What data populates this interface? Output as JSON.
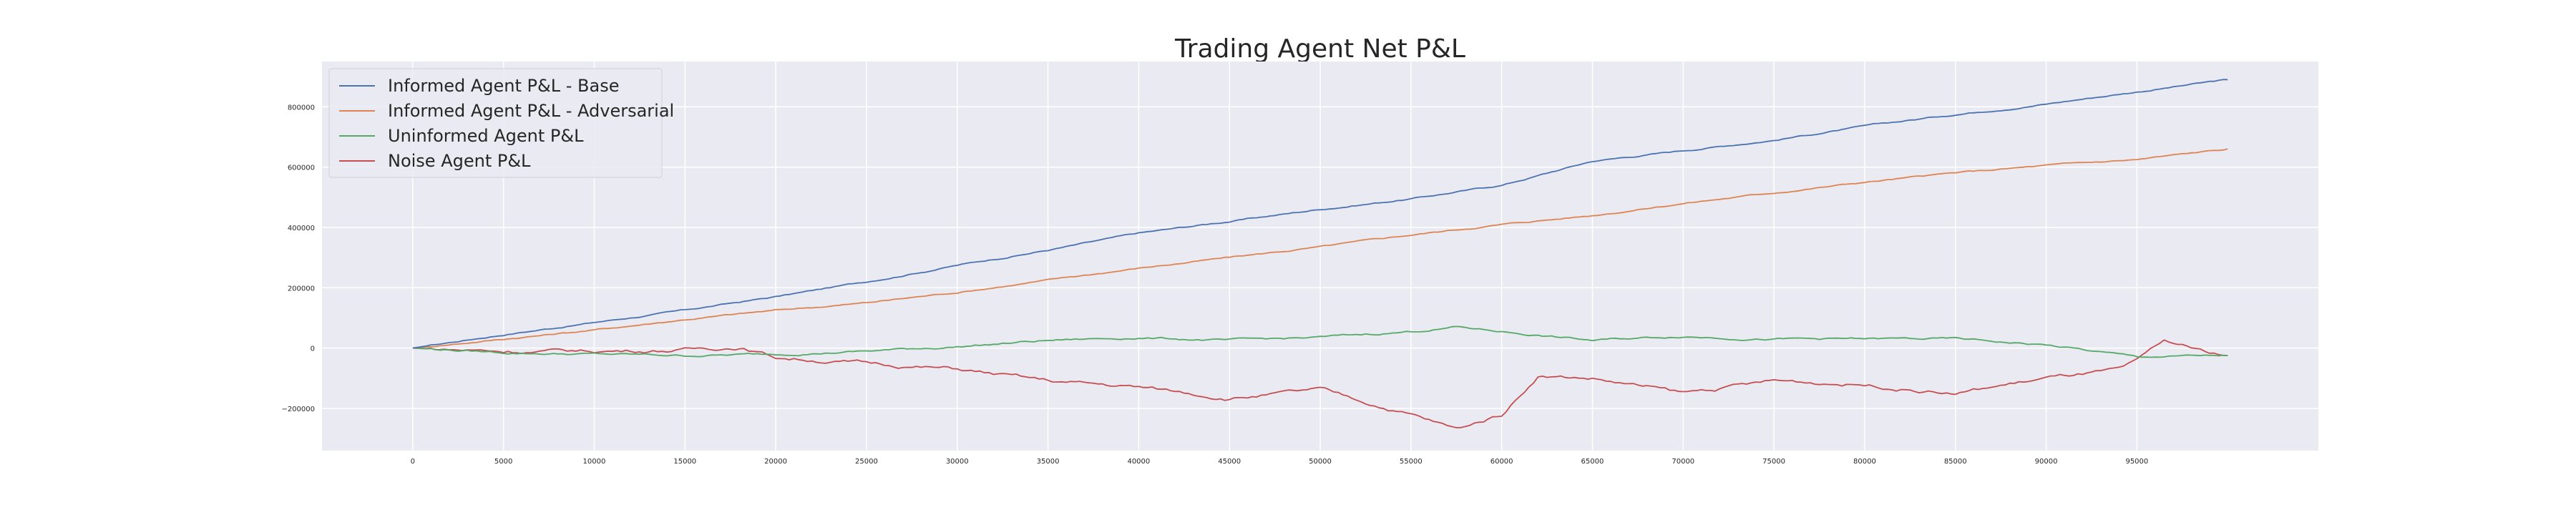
{
  "chart_data": {
    "type": "line",
    "title": "Trading Agent Net P&L",
    "xlabel": "",
    "ylabel": "",
    "xlim": [
      -5000,
      105000
    ],
    "ylim": [
      -340000,
      950000
    ],
    "x_ticks": [
      0,
      5000,
      10000,
      15000,
      20000,
      25000,
      30000,
      35000,
      40000,
      45000,
      50000,
      55000,
      60000,
      65000,
      70000,
      75000,
      80000,
      85000,
      90000,
      95000
    ],
    "y_ticks": [
      -200000,
      0,
      200000,
      400000,
      600000,
      800000
    ],
    "y_tick_labels": [
      "−200000",
      "0",
      "200000",
      "400000",
      "600000",
      "800000"
    ],
    "grid": true,
    "legend_position": "top-left",
    "series": [
      {
        "name": "Informed Agent P&L - Base",
        "color": "#4c72b0",
        "x": [
          0,
          5000,
          10000,
          15000,
          20000,
          25000,
          30000,
          35000,
          40000,
          45000,
          50000,
          55000,
          60000,
          62500,
          65000,
          70000,
          75000,
          80000,
          85000,
          90000,
          95000,
          100000
        ],
        "y": [
          0,
          45000,
          85000,
          125000,
          170000,
          220000,
          275000,
          325000,
          380000,
          420000,
          460000,
          495000,
          540000,
          580000,
          620000,
          655000,
          690000,
          735000,
          775000,
          810000,
          850000,
          890000
        ]
      },
      {
        "name": "Informed Agent P&L - Adversarial",
        "color": "#dd8452",
        "x": [
          0,
          5000,
          10000,
          15000,
          20000,
          25000,
          30000,
          35000,
          40000,
          45000,
          50000,
          55000,
          60000,
          65000,
          70000,
          75000,
          80000,
          85000,
          90000,
          95000,
          100000
        ],
        "y": [
          0,
          30000,
          60000,
          95000,
          125000,
          150000,
          185000,
          225000,
          265000,
          300000,
          335000,
          375000,
          410000,
          440000,
          480000,
          515000,
          550000,
          580000,
          605000,
          625000,
          660000
        ]
      },
      {
        "name": "Uninformed Agent P&L",
        "color": "#55a868",
        "x": [
          0,
          5000,
          10000,
          15000,
          20000,
          25000,
          30000,
          35000,
          40000,
          45000,
          50000,
          55000,
          57500,
          60000,
          65000,
          70000,
          75000,
          80000,
          85000,
          90000,
          95000,
          100000
        ],
        "y": [
          0,
          -15000,
          -20000,
          -25000,
          -20000,
          -10000,
          5000,
          25000,
          35000,
          25000,
          35000,
          55000,
          70000,
          55000,
          25000,
          40000,
          30000,
          30000,
          30000,
          10000,
          -30000,
          -25000
        ]
      },
      {
        "name": "Noise Agent P&L",
        "color": "#c44e52",
        "x": [
          0,
          5000,
          10000,
          15000,
          18000,
          20000,
          25000,
          30000,
          35000,
          40000,
          45000,
          50000,
          55000,
          57500,
          60000,
          62000,
          65000,
          70000,
          75000,
          80000,
          85000,
          90000,
          94000,
          95000,
          96500,
          98500,
          100000
        ],
        "y": [
          0,
          -10000,
          -10000,
          -5000,
          5000,
          -30000,
          -50000,
          -70000,
          -110000,
          -130000,
          -165000,
          -140000,
          -220000,
          -270000,
          -220000,
          -90000,
          -100000,
          -150000,
          -110000,
          -120000,
          -150000,
          -100000,
          -75000,
          -50000,
          20000,
          -10000,
          -25000
        ]
      }
    ]
  }
}
